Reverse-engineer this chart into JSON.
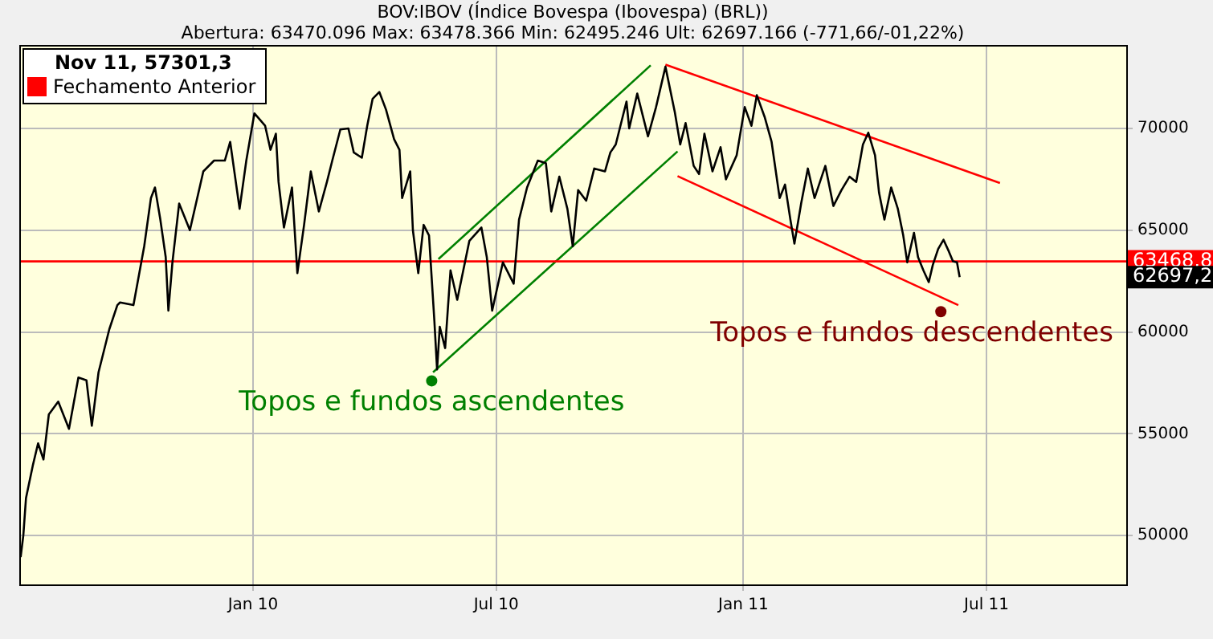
{
  "chart_data": {
    "type": "line",
    "title": "BOV:IBOV (Índice Bovespa (Ibovespa) (BRL))",
    "subtitle": "Abertura: 63470.096 Max: 63478.366 Min: 62495.246 Ult: 62697.166 (-771,66/-01,22%)",
    "legend_title": "Nov 11, 57301,3",
    "legend": "top left",
    "grid": true,
    "marker": "none",
    "line_style": "solid",
    "xlim": [
      "2009-07-11",
      "2011-10-13"
    ],
    "xticks": [
      {
        "value": "2010-01-01",
        "label": "Jan 10"
      },
      {
        "value": "2010-07-01",
        "label": "Jul 10"
      },
      {
        "value": "2011-01-01",
        "label": "Jan 11"
      },
      {
        "value": "2011-07-01",
        "label": "Jul 11"
      }
    ],
    "ylim": [
      47600,
      74100
    ],
    "yticks": [
      50000,
      55000,
      60000,
      65000,
      70000
    ],
    "series": [
      {
        "color": "#000000",
        "x": [
          "2009-07-12",
          "2009-07-14",
          "2009-07-16",
          "2009-07-21",
          "2009-07-25",
          "2009-07-29",
          "2009-08-02",
          "2009-08-09",
          "2009-08-17",
          "2009-08-24",
          "2009-08-30",
          "2009-09-03",
          "2009-09-08",
          "2009-09-16",
          "2009-09-22",
          "2009-09-24",
          "2009-10-04",
          "2009-10-12",
          "2009-10-17",
          "2009-10-20",
          "2009-10-24",
          "2009-10-28",
          "2009-10-30",
          "2009-11-02",
          "2009-11-07",
          "2009-11-15",
          "2009-11-25",
          "2009-12-03",
          "2009-12-11",
          "2009-12-15",
          "2009-12-22",
          "2009-12-27",
          "2010-01-02",
          "2010-01-10",
          "2010-01-14",
          "2010-01-18",
          "2010-01-20",
          "2010-01-24",
          "2010-01-30",
          "2010-02-03",
          "2010-02-08",
          "2010-02-13",
          "2010-02-19",
          "2010-02-25",
          "2010-03-01",
          "2010-03-07",
          "2010-03-13",
          "2010-03-17",
          "2010-03-23",
          "2010-03-27",
          "2010-03-31",
          "2010-04-05",
          "2010-04-10",
          "2010-04-16",
          "2010-04-20",
          "2010-04-22",
          "2010-04-28",
          "2010-04-30",
          "2010-05-04",
          "2010-05-08",
          "2010-05-12",
          "2010-05-16",
          "2010-05-18",
          "2010-05-20",
          "2010-05-24",
          "2010-05-28",
          "2010-06-02",
          "2010-06-11",
          "2010-06-20",
          "2010-06-24",
          "2010-06-28",
          "2010-07-06",
          "2010-07-14",
          "2010-07-18",
          "2010-07-24",
          "2010-08-01",
          "2010-08-07",
          "2010-08-11",
          "2010-08-17",
          "2010-08-23",
          "2010-08-27",
          "2010-08-31",
          "2010-09-06",
          "2010-09-12",
          "2010-09-20",
          "2010-09-24",
          "2010-09-28",
          "2010-10-06",
          "2010-10-08",
          "2010-10-14",
          "2010-10-22",
          "2010-10-28",
          "2010-11-04",
          "2010-11-11",
          "2010-11-15",
          "2010-11-19",
          "2010-11-25",
          "2010-11-29",
          "2010-12-03",
          "2010-12-09",
          "2010-12-15",
          "2010-12-19",
          "2010-12-27",
          "2011-01-02",
          "2011-01-07",
          "2011-01-11",
          "2011-01-17",
          "2011-01-22",
          "2011-01-28",
          "2011-02-01",
          "2011-02-05",
          "2011-02-08",
          "2011-02-13",
          "2011-02-18",
          "2011-02-23",
          "2011-03-03",
          "2011-03-09",
          "2011-03-15",
          "2011-03-21",
          "2011-03-26",
          "2011-03-31",
          "2011-04-04",
          "2011-04-09",
          "2011-04-12",
          "2011-04-16",
          "2011-04-21",
          "2011-04-26",
          "2011-04-30",
          "2011-05-03",
          "2011-05-08",
          "2011-05-11",
          "2011-05-15",
          "2011-05-19",
          "2011-05-22",
          "2011-05-26",
          "2011-05-30",
          "2011-06-03",
          "2011-06-06",
          "2011-06-09",
          "2011-06-11"
        ],
        "values": [
          48940,
          50000,
          51840,
          53420,
          54530,
          53740,
          55950,
          56580,
          55240,
          57760,
          57630,
          55390,
          58020,
          60130,
          61320,
          61450,
          61320,
          64210,
          66580,
          67100,
          65520,
          63680,
          61050,
          63420,
          66310,
          65000,
          67890,
          68420,
          68420,
          69340,
          66050,
          68420,
          70740,
          70130,
          68950,
          69740,
          67370,
          65130,
          67100,
          62890,
          65260,
          67890,
          65920,
          67370,
          68420,
          69950,
          70000,
          68820,
          68560,
          70130,
          71450,
          71790,
          70920,
          69470,
          68950,
          66580,
          67890,
          65000,
          62890,
          65260,
          64740,
          60530,
          58160,
          60260,
          59210,
          63030,
          61580,
          64470,
          65130,
          63680,
          61050,
          63420,
          62370,
          65520,
          67100,
          68420,
          68290,
          65920,
          67630,
          66050,
          64210,
          66970,
          66450,
          68030,
          67890,
          68820,
          69210,
          71320,
          70000,
          71710,
          69610,
          71050,
          73030,
          70790,
          69210,
          70260,
          68160,
          67760,
          69740,
          67890,
          69080,
          67500,
          68680,
          71050,
          70130,
          71630,
          70530,
          69340,
          66580,
          67240,
          65520,
          64340,
          66310,
          68030,
          66580,
          68160,
          66190,
          66970,
          67630,
          67370,
          69210,
          69790,
          68680,
          66840,
          65520,
          67100,
          66050,
          64740,
          63420,
          64870,
          63680,
          63030,
          62450,
          63290,
          64080,
          64530,
          63950,
          63470,
          63420,
          62697.2
        ]
      },
      {
        "type": "line",
        "name": "Fechamento Anterior",
        "color": "#ff0000",
        "x": [
          "2009-07-11",
          "2011-10-13"
        ],
        "values": [
          63468.8,
          63468.8
        ]
      },
      {
        "type": "line",
        "color": "#008000",
        "x": [
          "2010-05-19",
          "2010-10-24"
        ],
        "values": [
          63580,
          73100
        ]
      },
      {
        "type": "line",
        "color": "#008000",
        "x": [
          "2010-05-15",
          "2010-11-13"
        ],
        "values": [
          58020,
          68870
        ]
      },
      {
        "type": "line",
        "color": "#ff0000",
        "x": [
          "2010-11-04",
          "2011-07-11"
        ],
        "values": [
          73130,
          67320
        ]
      },
      {
        "type": "line",
        "color": "#ff0000",
        "x": [
          "2010-11-13",
          "2011-06-10"
        ],
        "values": [
          67660,
          61320
        ]
      },
      {
        "type": "scatter",
        "marker": "circle",
        "color": "#008000",
        "x": [
          "2010-05-14"
        ],
        "values": [
          57600
        ]
      },
      {
        "type": "scatter",
        "marker": "circle",
        "color": "#800000",
        "x": [
          "2011-05-28"
        ],
        "values": [
          61000
        ]
      }
    ],
    "annotations": [
      "Topos e fundos ascendentes",
      "Topos e fundos descendentes",
      {
        "text": "63468,8",
        "x": "2011-10-13",
        "y": 63468.8
      },
      "62697,2"
    ]
  }
}
